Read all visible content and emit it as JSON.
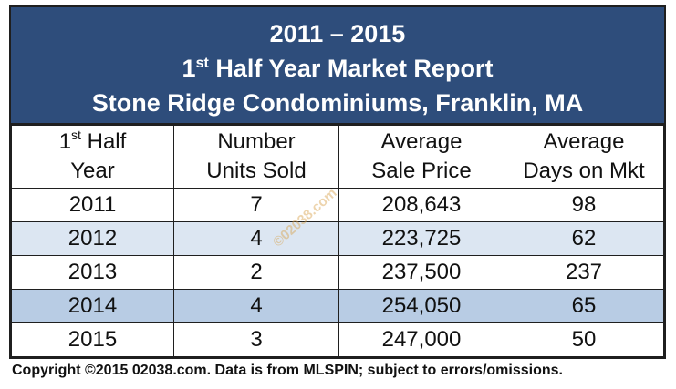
{
  "header": {
    "line1": "2011 – 2015",
    "line2_sup": "st",
    "line2_pre": "1",
    "line2_post": " Half Year Market Report",
    "line3": "Stone Ridge Condominiums, Franklin, MA"
  },
  "columns": {
    "col1_pre": "1",
    "col1_sup": "st",
    "col1_post": " Half",
    "col1_line2": "Year",
    "col2_line1": "Number",
    "col2_line2": "Units Sold",
    "col3_line1": "Average",
    "col3_line2": "Sale Price",
    "col4_line1": "Average",
    "col4_line2": "Days on Mkt"
  },
  "rows": [
    {
      "year": "2011",
      "units": "7",
      "price": "208,643",
      "days": "98"
    },
    {
      "year": "2012",
      "units": "4",
      "price": "223,725",
      "days": "62"
    },
    {
      "year": "2013",
      "units": "2",
      "price": "237,500",
      "days": "237"
    },
    {
      "year": "2014",
      "units": "4",
      "price": "254,050",
      "days": "65"
    },
    {
      "year": "2015",
      "units": "3",
      "price": "247,000",
      "days": "50"
    }
  ],
  "watermark": "©02038.com",
  "footer": "Copyright ©2015 02038.com.  Data is from MLSPIN; subject to errors/omissions.",
  "colors": {
    "header_bg": "#2e4d7b",
    "row_light": "#dce6f2",
    "row_mid": "#b8cce4"
  }
}
